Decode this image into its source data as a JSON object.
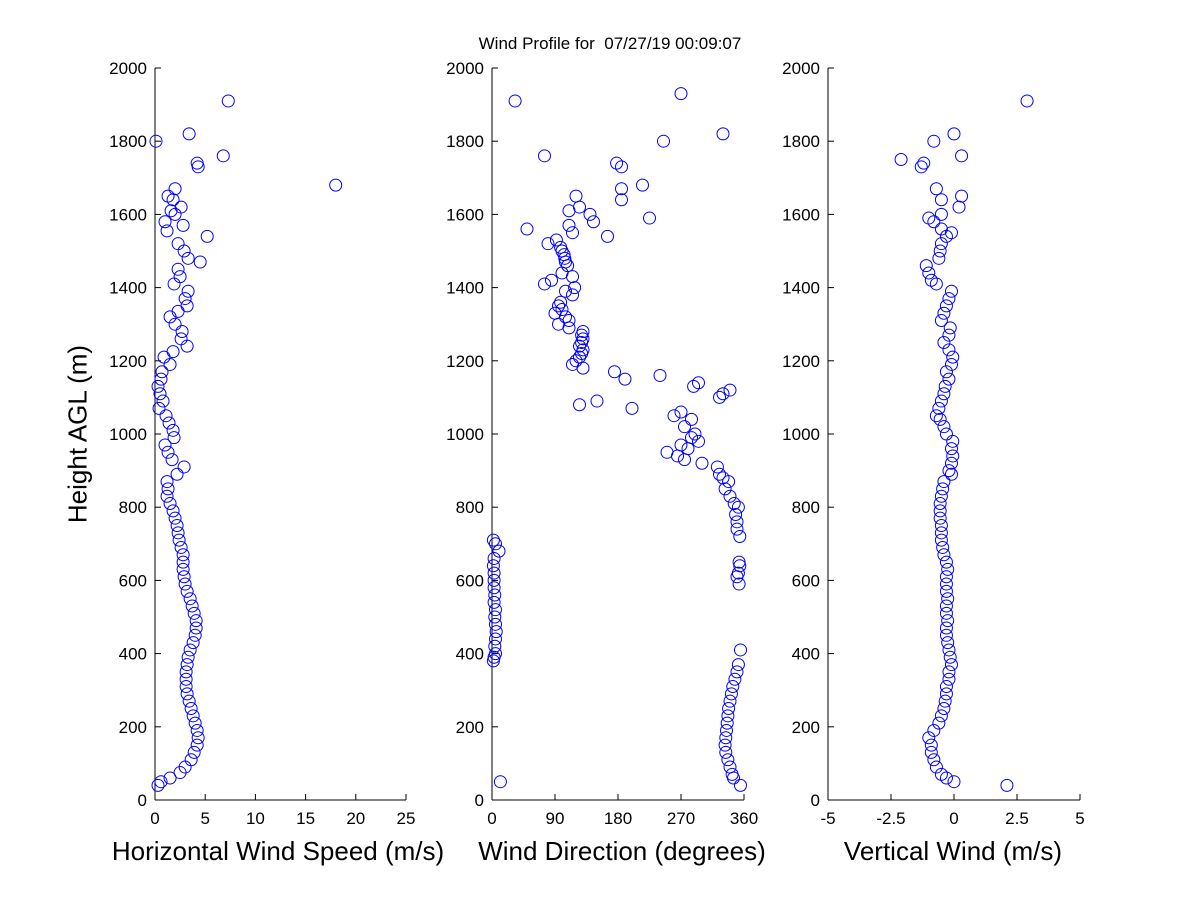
{
  "title": "Wind Profile for  07/27/19 00:09:07",
  "ylabel": "Height AGL (m)",
  "marker_color": "#0000ff",
  "chart_data": [
    {
      "type": "scatter",
      "xlabel": "Horizontal Wind Speed (m/s)",
      "ylabel": "Height AGL (m)",
      "xlim": [
        0,
        25
      ],
      "ylim": [
        0,
        2000
      ],
      "xticks": [
        0,
        5,
        10,
        15,
        20,
        25
      ],
      "xtick_labels": [
        "0",
        "5",
        "10",
        "15",
        "20",
        "25"
      ],
      "yticks": [
        0,
        200,
        400,
        600,
        800,
        1000,
        1200,
        1400,
        1600,
        1800,
        2000
      ],
      "ytick_labels": [
        "0",
        "200",
        "400",
        "600",
        "800",
        "1000",
        "1200",
        "1400",
        "1600",
        "1800",
        "2000"
      ],
      "points": [
        [
          0.3,
          40
        ],
        [
          0.6,
          50
        ],
        [
          1.5,
          60
        ],
        [
          2.5,
          75
        ],
        [
          3.0,
          90
        ],
        [
          3.6,
          110
        ],
        [
          3.9,
          130
        ],
        [
          4.2,
          150
        ],
        [
          4.3,
          170
        ],
        [
          4.2,
          190
        ],
        [
          4.0,
          210
        ],
        [
          3.8,
          230
        ],
        [
          3.6,
          250
        ],
        [
          3.4,
          270
        ],
        [
          3.2,
          290
        ],
        [
          3.1,
          310
        ],
        [
          3.1,
          330
        ],
        [
          3.1,
          350
        ],
        [
          3.2,
          370
        ],
        [
          3.3,
          390
        ],
        [
          3.5,
          410
        ],
        [
          3.8,
          430
        ],
        [
          4.0,
          450
        ],
        [
          4.1,
          470
        ],
        [
          4.1,
          490
        ],
        [
          3.9,
          510
        ],
        [
          3.7,
          530
        ],
        [
          3.5,
          550
        ],
        [
          3.2,
          570
        ],
        [
          3.0,
          590
        ],
        [
          2.9,
          610
        ],
        [
          2.8,
          630
        ],
        [
          2.8,
          650
        ],
        [
          2.8,
          670
        ],
        [
          2.6,
          690
        ],
        [
          2.4,
          710
        ],
        [
          2.3,
          730
        ],
        [
          2.2,
          750
        ],
        [
          2.0,
          770
        ],
        [
          1.8,
          790
        ],
        [
          1.5,
          810
        ],
        [
          1.2,
          830
        ],
        [
          1.3,
          850
        ],
        [
          1.2,
          870
        ],
        [
          2.2,
          890
        ],
        [
          2.9,
          910
        ],
        [
          1.7,
          930
        ],
        [
          1.3,
          950
        ],
        [
          1.0,
          970
        ],
        [
          1.9,
          990
        ],
        [
          1.8,
          1010
        ],
        [
          1.4,
          1030
        ],
        [
          1.1,
          1050
        ],
        [
          0.4,
          1070
        ],
        [
          0.8,
          1090
        ],
        [
          0.5,
          1110
        ],
        [
          0.3,
          1130
        ],
        [
          0.6,
          1150
        ],
        [
          0.7,
          1170
        ],
        [
          1.5,
          1190
        ],
        [
          0.9,
          1210
        ],
        [
          1.8,
          1225
        ],
        [
          3.2,
          1240
        ],
        [
          2.6,
          1260
        ],
        [
          2.7,
          1280
        ],
        [
          2.0,
          1300
        ],
        [
          1.5,
          1320
        ],
        [
          2.3,
          1335
        ],
        [
          3.2,
          1350
        ],
        [
          3.0,
          1370
        ],
        [
          3.3,
          1390
        ],
        [
          1.9,
          1410
        ],
        [
          2.5,
          1430
        ],
        [
          2.3,
          1450
        ],
        [
          4.5,
          1470
        ],
        [
          3.3,
          1480
        ],
        [
          2.9,
          1500
        ],
        [
          2.3,
          1520
        ],
        [
          5.2,
          1540
        ],
        [
          1.2,
          1555
        ],
        [
          2.8,
          1570
        ],
        [
          1.0,
          1580
        ],
        [
          2.0,
          1600
        ],
        [
          1.6,
          1610
        ],
        [
          2.6,
          1620
        ],
        [
          1.8,
          1640
        ],
        [
          1.3,
          1650
        ],
        [
          2.0,
          1670
        ],
        [
          18.0,
          1680
        ],
        [
          4.3,
          1730
        ],
        [
          4.2,
          1740
        ],
        [
          6.8,
          1760
        ],
        [
          0.1,
          1800
        ],
        [
          3.4,
          1820
        ],
        [
          7.3,
          1910
        ]
      ]
    },
    {
      "type": "scatter",
      "xlabel": "Wind Direction (degrees)",
      "ylabel": "Height AGL (m)",
      "xlim": [
        0,
        360
      ],
      "ylim": [
        0,
        2000
      ],
      "xticks": [
        0,
        90,
        180,
        270,
        360
      ],
      "xtick_labels": [
        "0",
        "90",
        "180",
        "270",
        "360"
      ],
      "yticks": [
        0,
        200,
        400,
        600,
        800,
        1000,
        1200,
        1400,
        1600,
        1800,
        2000
      ],
      "ytick_labels": [
        "0",
        "200",
        "400",
        "600",
        "800",
        "1000",
        "1200",
        "1400",
        "1600",
        "1800",
        "2000"
      ],
      "points": [
        [
          355,
          40
        ],
        [
          12,
          50
        ],
        [
          345,
          60
        ],
        [
          343,
          70
        ],
        [
          340,
          90
        ],
        [
          337,
          110
        ],
        [
          334,
          130
        ],
        [
          333,
          150
        ],
        [
          334,
          170
        ],
        [
          335,
          190
        ],
        [
          336,
          210
        ],
        [
          337,
          230
        ],
        [
          338,
          250
        ],
        [
          340,
          270
        ],
        [
          342,
          290
        ],
        [
          344,
          310
        ],
        [
          347,
          330
        ],
        [
          350,
          350
        ],
        [
          352,
          370
        ],
        [
          2,
          380
        ],
        [
          3,
          390
        ],
        [
          5,
          400
        ],
        [
          355,
          410
        ],
        [
          4,
          420
        ],
        [
          5,
          440
        ],
        [
          6,
          460
        ],
        [
          5,
          480
        ],
        [
          4,
          500
        ],
        [
          5,
          520
        ],
        [
          3,
          540
        ],
        [
          4,
          560
        ],
        [
          3,
          580
        ],
        [
          353,
          590
        ],
        [
          3,
          600
        ],
        [
          350,
          610
        ],
        [
          352,
          620
        ],
        [
          3,
          620
        ],
        [
          354,
          640
        ],
        [
          2,
          640
        ],
        [
          353,
          650
        ],
        [
          3,
          660
        ],
        [
          10,
          680
        ],
        [
          5,
          700
        ],
        [
          2,
          710
        ],
        [
          354,
          720
        ],
        [
          350,
          740
        ],
        [
          350,
          760
        ],
        [
          348,
          780
        ],
        [
          352,
          800
        ],
        [
          346,
          810
        ],
        [
          340,
          830
        ],
        [
          333,
          850
        ],
        [
          338,
          870
        ],
        [
          330,
          880
        ],
        [
          325,
          890
        ],
        [
          322,
          910
        ],
        [
          300,
          920
        ],
        [
          275,
          930
        ],
        [
          265,
          940
        ],
        [
          250,
          950
        ],
        [
          280,
          960
        ],
        [
          270,
          970
        ],
        [
          295,
          980
        ],
        [
          285,
          990
        ],
        [
          290,
          1000
        ],
        [
          275,
          1020
        ],
        [
          285,
          1040
        ],
        [
          260,
          1050
        ],
        [
          270,
          1060
        ],
        [
          200,
          1070
        ],
        [
          125,
          1080
        ],
        [
          150,
          1090
        ],
        [
          325,
          1100
        ],
        [
          330,
          1110
        ],
        [
          340,
          1120
        ],
        [
          288,
          1130
        ],
        [
          295,
          1140
        ],
        [
          190,
          1150
        ],
        [
          240,
          1160
        ],
        [
          175,
          1170
        ],
        [
          130,
          1180
        ],
        [
          115,
          1190
        ],
        [
          120,
          1200
        ],
        [
          125,
          1210
        ],
        [
          128,
          1220
        ],
        [
          130,
          1230
        ],
        [
          125,
          1240
        ],
        [
          128,
          1250
        ],
        [
          130,
          1260
        ],
        [
          128,
          1270
        ],
        [
          130,
          1280
        ],
        [
          110,
          1290
        ],
        [
          95,
          1300
        ],
        [
          110,
          1310
        ],
        [
          105,
          1320
        ],
        [
          90,
          1330
        ],
        [
          100,
          1340
        ],
        [
          95,
          1350
        ],
        [
          98,
          1360
        ],
        [
          115,
          1380
        ],
        [
          105,
          1390
        ],
        [
          118,
          1400
        ],
        [
          75,
          1410
        ],
        [
          85,
          1420
        ],
        [
          115,
          1430
        ],
        [
          100,
          1440
        ],
        [
          108,
          1460
        ],
        [
          105,
          1470
        ],
        [
          104,
          1480
        ],
        [
          103,
          1490
        ],
        [
          100,
          1500
        ],
        [
          98,
          1510
        ],
        [
          80,
          1520
        ],
        [
          92,
          1530
        ],
        [
          165,
          1540
        ],
        [
          115,
          1550
        ],
        [
          50,
          1560
        ],
        [
          110,
          1570
        ],
        [
          145,
          1580
        ],
        [
          225,
          1590
        ],
        [
          140,
          1600
        ],
        [
          110,
          1610
        ],
        [
          125,
          1620
        ],
        [
          185,
          1640
        ],
        [
          120,
          1650
        ],
        [
          185,
          1670
        ],
        [
          215,
          1680
        ],
        [
          185,
          1730
        ],
        [
          178,
          1740
        ],
        [
          75,
          1760
        ],
        [
          245,
          1800
        ],
        [
          330,
          1820
        ],
        [
          33,
          1910
        ],
        [
          270,
          1930
        ]
      ]
    },
    {
      "type": "scatter",
      "xlabel": "Vertical Wind (m/s)",
      "ylabel": "Height AGL (m)",
      "xlim": [
        -5,
        5
      ],
      "ylim": [
        0,
        2000
      ],
      "xticks": [
        -5,
        -2.5,
        0,
        2.5,
        5
      ],
      "xtick_labels": [
        "-5",
        "-2.5",
        "0",
        "2.5",
        "5"
      ],
      "yticks": [
        0,
        200,
        400,
        600,
        800,
        1000,
        1200,
        1400,
        1600,
        1800,
        2000
      ],
      "ytick_labels": [
        "0",
        "200",
        "400",
        "600",
        "800",
        "1000",
        "1200",
        "1400",
        "1600",
        "1800",
        "2000"
      ],
      "points": [
        [
          2.1,
          40
        ],
        [
          0.0,
          50
        ],
        [
          -0.3,
          60
        ],
        [
          -0.5,
          70
        ],
        [
          -0.7,
          90
        ],
        [
          -0.8,
          110
        ],
        [
          -0.9,
          130
        ],
        [
          -0.9,
          150
        ],
        [
          -1.0,
          170
        ],
        [
          -0.8,
          190
        ],
        [
          -0.6,
          210
        ],
        [
          -0.5,
          230
        ],
        [
          -0.4,
          250
        ],
        [
          -0.35,
          270
        ],
        [
          -0.3,
          290
        ],
        [
          -0.3,
          310
        ],
        [
          -0.2,
          330
        ],
        [
          -0.2,
          350
        ],
        [
          -0.1,
          370
        ],
        [
          -0.15,
          390
        ],
        [
          -0.2,
          410
        ],
        [
          -0.25,
          430
        ],
        [
          -0.3,
          450
        ],
        [
          -0.3,
          470
        ],
        [
          -0.25,
          490
        ],
        [
          -0.3,
          510
        ],
        [
          -0.3,
          530
        ],
        [
          -0.25,
          550
        ],
        [
          -0.3,
          570
        ],
        [
          -0.3,
          590
        ],
        [
          -0.3,
          610
        ],
        [
          -0.25,
          630
        ],
        [
          -0.3,
          650
        ],
        [
          -0.4,
          670
        ],
        [
          -0.45,
          690
        ],
        [
          -0.5,
          710
        ],
        [
          -0.5,
          730
        ],
        [
          -0.5,
          750
        ],
        [
          -0.55,
          770
        ],
        [
          -0.55,
          790
        ],
        [
          -0.55,
          810
        ],
        [
          -0.5,
          830
        ],
        [
          -0.45,
          850
        ],
        [
          -0.4,
          870
        ],
        [
          -0.1,
          890
        ],
        [
          -0.2,
          900
        ],
        [
          -0.1,
          920
        ],
        [
          -0.05,
          940
        ],
        [
          -0.1,
          960
        ],
        [
          -0.05,
          980
        ],
        [
          -0.3,
          1000
        ],
        [
          -0.4,
          1020
        ],
        [
          -0.55,
          1040
        ],
        [
          -0.7,
          1050
        ],
        [
          -0.6,
          1070
        ],
        [
          -0.5,
          1090
        ],
        [
          -0.4,
          1110
        ],
        [
          -0.35,
          1130
        ],
        [
          -0.2,
          1150
        ],
        [
          -0.3,
          1170
        ],
        [
          -0.1,
          1190
        ],
        [
          -0.05,
          1210
        ],
        [
          -0.2,
          1230
        ],
        [
          -0.4,
          1250
        ],
        [
          -0.2,
          1270
        ],
        [
          -0.15,
          1290
        ],
        [
          -0.5,
          1310
        ],
        [
          -0.4,
          1330
        ],
        [
          -0.3,
          1350
        ],
        [
          -0.2,
          1370
        ],
        [
          -0.1,
          1390
        ],
        [
          -0.7,
          1410
        ],
        [
          -0.9,
          1420
        ],
        [
          -1.0,
          1440
        ],
        [
          -1.1,
          1460
        ],
        [
          -0.6,
          1480
        ],
        [
          -0.55,
          1500
        ],
        [
          -0.5,
          1520
        ],
        [
          -0.3,
          1540
        ],
        [
          -0.1,
          1550
        ],
        [
          -0.5,
          1560
        ],
        [
          -0.8,
          1580
        ],
        [
          -1.0,
          1590
        ],
        [
          -0.5,
          1600
        ],
        [
          0.2,
          1620
        ],
        [
          -0.5,
          1640
        ],
        [
          0.3,
          1650
        ],
        [
          -0.7,
          1670
        ],
        [
          -1.3,
          1730
        ],
        [
          -1.2,
          1740
        ],
        [
          -2.1,
          1750
        ],
        [
          0.3,
          1760
        ],
        [
          -0.8,
          1800
        ],
        [
          0.0,
          1820
        ],
        [
          2.9,
          1910
        ]
      ]
    }
  ]
}
